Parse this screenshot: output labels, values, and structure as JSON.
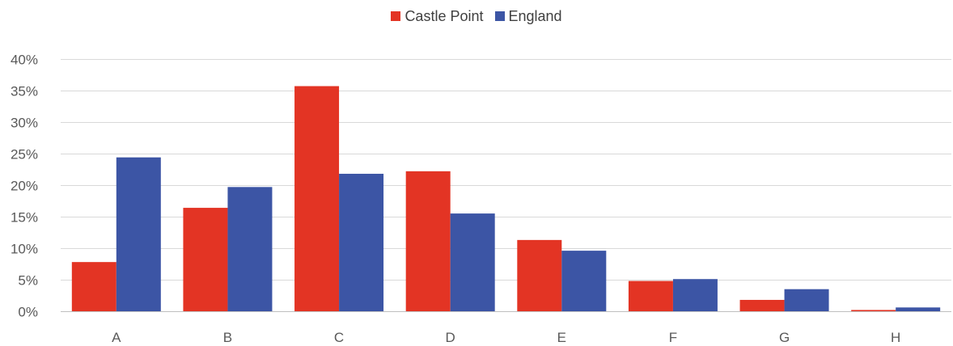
{
  "chart_data": {
    "type": "bar",
    "categories": [
      "A",
      "B",
      "C",
      "D",
      "E",
      "F",
      "G",
      "H"
    ],
    "series": [
      {
        "name": "Castle Point",
        "color": "#E33424",
        "values": [
          7.8,
          16.4,
          35.7,
          22.2,
          11.3,
          4.8,
          1.8,
          0.2
        ]
      },
      {
        "name": "England",
        "color": "#3C55A5",
        "values": [
          24.4,
          19.7,
          21.8,
          15.5,
          9.6,
          5.1,
          3.5,
          0.6
        ]
      }
    ],
    "ylim": [
      0,
      40
    ],
    "yticks": [
      0,
      5,
      10,
      15,
      20,
      25,
      30,
      35,
      40
    ],
    "ytick_labels": [
      "0%",
      "5%",
      "10%",
      "15%",
      "20%",
      "25%",
      "30%",
      "35%",
      "40%"
    ],
    "grid": true,
    "legend_position": "top-center",
    "title": "",
    "xlabel": "",
    "ylabel": ""
  }
}
